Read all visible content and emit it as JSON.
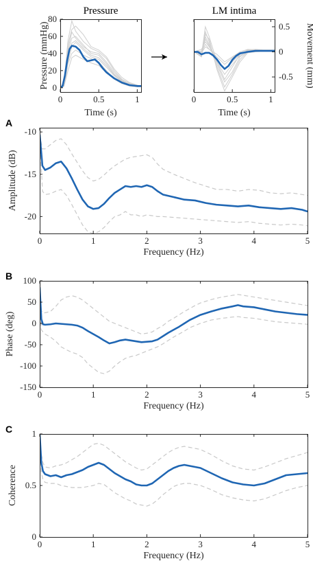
{
  "colors": {
    "mean": "#1f66b3",
    "band": "#c8c8c8",
    "trace": "#cfcfcf",
    "axis": "#262626"
  },
  "chart_data": [
    {
      "type": "line",
      "title": "Pressure",
      "xlabel": "Time (s)",
      "ylabel": "Pressure (mmHg)",
      "xlim": [
        0,
        1.05
      ],
      "ylim": [
        -5,
        80
      ],
      "xticks": [
        0,
        0.5,
        1
      ],
      "yticks": [
        0,
        20,
        40,
        60,
        80
      ],
      "xticklabels": [
        "0",
        "0.5",
        "1"
      ],
      "yticklabels": [
        "0",
        "20",
        "40",
        "60",
        "80"
      ],
      "mean": {
        "x": [
          0,
          0.03,
          0.06,
          0.09,
          0.12,
          0.15,
          0.2,
          0.25,
          0.3,
          0.35,
          0.4,
          0.45,
          0.5,
          0.55,
          0.6,
          0.7,
          0.8,
          0.9,
          1.0,
          1.05
        ],
        "y": [
          0,
          2,
          14,
          32,
          45,
          49,
          48,
          44,
          36,
          31,
          32,
          33,
          29,
          23,
          18,
          11,
          6,
          3,
          2,
          2
        ]
      },
      "traces": {
        "x": [
          0,
          0.05,
          0.1,
          0.15,
          0.2,
          0.3,
          0.4,
          0.5,
          0.6,
          0.7,
          0.8,
          0.9,
          1.0,
          1.05
        ],
        "y": [
          [
            0,
            6,
            50,
            68,
            72,
            62,
            48,
            44,
            36,
            22,
            12,
            6,
            3,
            2
          ],
          [
            0,
            3,
            42,
            58,
            60,
            50,
            40,
            38,
            28,
            16,
            8,
            4,
            2,
            2
          ],
          [
            0,
            4,
            30,
            48,
            53,
            44,
            36,
            33,
            24,
            14,
            7,
            3,
            2,
            2
          ],
          [
            0,
            2,
            28,
            40,
            44,
            38,
            34,
            30,
            20,
            10,
            5,
            2,
            1,
            1
          ],
          [
            0,
            5,
            45,
            65,
            58,
            48,
            42,
            40,
            30,
            18,
            9,
            4,
            2,
            2
          ],
          [
            0,
            2,
            20,
            35,
            38,
            33,
            29,
            26,
            18,
            10,
            5,
            2,
            1,
            1
          ],
          [
            0,
            7,
            55,
            78,
            66,
            54,
            46,
            42,
            34,
            20,
            10,
            5,
            3,
            2
          ],
          [
            0,
            3,
            35,
            52,
            55,
            46,
            38,
            35,
            26,
            15,
            8,
            4,
            2,
            2
          ]
        ]
      }
    },
    {
      "type": "line",
      "title": "LM intima",
      "xlabel": "Time (s)",
      "ylabel": "Movement (mm)",
      "xlim": [
        0,
        1.05
      ],
      "ylim": [
        -0.8,
        0.65
      ],
      "xticks": [
        0,
        0.5,
        1
      ],
      "yticks": [
        0.5,
        0,
        -0.5
      ],
      "xticklabels": [
        "0",
        "0.5",
        "1"
      ],
      "yticklabels": [
        "0.5",
        "0",
        "-0.5"
      ],
      "mean": {
        "x": [
          0,
          0.05,
          0.1,
          0.15,
          0.2,
          0.25,
          0.3,
          0.35,
          0.4,
          0.45,
          0.5,
          0.55,
          0.6,
          0.7,
          0.8,
          0.9,
          1.0,
          1.05
        ],
        "y": [
          0,
          0,
          -0.05,
          -0.02,
          -0.02,
          -0.07,
          -0.15,
          -0.26,
          -0.34,
          -0.28,
          -0.16,
          -0.08,
          -0.03,
          0,
          0.02,
          0.02,
          0.02,
          0.02
        ]
      },
      "traces": {
        "x": [
          0,
          0.1,
          0.15,
          0.2,
          0.3,
          0.4,
          0.5,
          0.6,
          0.7,
          0.8,
          0.9,
          1.0,
          1.05
        ],
        "y": [
          [
            0,
            -0.05,
            0.5,
            0.3,
            -0.2,
            -0.55,
            -0.3,
            -0.05,
            0.02,
            0.02,
            0.02,
            0.02,
            0.02
          ],
          [
            0,
            -0.1,
            0.3,
            0.15,
            -0.3,
            -0.7,
            -0.45,
            -0.15,
            0,
            0.02,
            0.02,
            0.02,
            0.02
          ],
          [
            0,
            0.05,
            0.2,
            0.1,
            -0.15,
            -0.35,
            -0.2,
            -0.05,
            0.03,
            0.03,
            0.03,
            0.03,
            0.03
          ],
          [
            0,
            -0.02,
            0.1,
            0.05,
            -0.1,
            -0.25,
            -0.12,
            0,
            0.05,
            0.04,
            0.03,
            0.03,
            0.03
          ],
          [
            0,
            -0.08,
            0.4,
            0.2,
            -0.25,
            -0.6,
            -0.4,
            -0.1,
            0,
            0.01,
            0.01,
            0.01,
            0.01
          ],
          [
            0,
            0,
            0.15,
            0.05,
            -0.05,
            -0.2,
            -0.1,
            0,
            0.04,
            0.05,
            0.04,
            0.04,
            0.04
          ],
          [
            0,
            -0.1,
            0.35,
            0.25,
            -0.35,
            -0.78,
            -0.5,
            -0.2,
            -0.02,
            0,
            0.01,
            0.01,
            0.01
          ],
          [
            0,
            0.02,
            0.25,
            0.12,
            -0.2,
            -0.45,
            -0.25,
            -0.08,
            0.02,
            0.03,
            0.03,
            0.03,
            0.03
          ]
        ]
      }
    },
    {
      "type": "line",
      "panel": "A",
      "xlabel": "Frequency (Hz)",
      "ylabel": "Amplitude (dB)",
      "xlim": [
        0,
        5
      ],
      "ylim": [
        -22,
        -9.5
      ],
      "xticks": [
        0,
        1,
        2,
        3,
        4,
        5
      ],
      "yticks": [
        -10,
        -15,
        -20
      ],
      "xticklabels": [
        "0",
        "1",
        "2",
        "3",
        "4",
        "5"
      ],
      "yticklabels": [
        "-10",
        "-15",
        "-20"
      ],
      "x": [
        0,
        0.05,
        0.1,
        0.2,
        0.3,
        0.4,
        0.5,
        0.6,
        0.7,
        0.8,
        0.9,
        1.0,
        1.1,
        1.2,
        1.3,
        1.4,
        1.5,
        1.6,
        1.7,
        1.8,
        1.9,
        2.0,
        2.1,
        2.2,
        2.3,
        2.5,
        2.7,
        2.9,
        3.1,
        3.3,
        3.5,
        3.7,
        3.9,
        4.1,
        4.3,
        4.5,
        4.7,
        4.9,
        5.0
      ],
      "mean": [
        -10.3,
        -14.0,
        -14.5,
        -14.2,
        -13.7,
        -13.5,
        -14.3,
        -15.5,
        -16.8,
        -18.0,
        -18.8,
        -19.1,
        -19.0,
        -18.5,
        -17.8,
        -17.2,
        -16.8,
        -16.4,
        -16.5,
        -16.4,
        -16.5,
        -16.3,
        -16.5,
        -17.0,
        -17.4,
        -17.7,
        -18.0,
        -18.1,
        -18.4,
        -18.6,
        -18.7,
        -18.8,
        -18.7,
        -18.9,
        -19.0,
        -19.1,
        -19.0,
        -19.2,
        -19.4
      ],
      "upper": [
        -10.3,
        -12.0,
        -12.0,
        -11.5,
        -11.0,
        -10.8,
        -11.5,
        -12.6,
        -13.6,
        -14.6,
        -15.4,
        -15.8,
        -15.6,
        -15.1,
        -14.5,
        -14.0,
        -13.6,
        -13.2,
        -13.0,
        -12.9,
        -12.8,
        -12.7,
        -13.0,
        -13.8,
        -14.4,
        -15.0,
        -15.5,
        -16.0,
        -16.4,
        -16.8,
        -16.8,
        -17.0,
        -16.8,
        -16.9,
        -17.2,
        -17.3,
        -17.2,
        -17.4,
        -17.5
      ],
      "lower": [
        -10.3,
        -17.0,
        -17.4,
        -17.3,
        -17.0,
        -16.8,
        -17.5,
        -18.6,
        -19.8,
        -21.0,
        -21.8,
        -22.0,
        -21.8,
        -21.3,
        -20.6,
        -20.0,
        -19.8,
        -19.4,
        -19.8,
        -19.8,
        -20.0,
        -19.8,
        -19.9,
        -20.0,
        -20.0,
        -20.1,
        -20.2,
        -20.3,
        -20.4,
        -20.5,
        -20.6,
        -20.7,
        -20.6,
        -20.8,
        -20.9,
        -21.0,
        -20.9,
        -21.0,
        -21.1
      ]
    },
    {
      "type": "line",
      "panel": "B",
      "xlabel": "Frequency (Hz)",
      "ylabel": "Phase (deg)",
      "xlim": [
        0,
        5
      ],
      "ylim": [
        -150,
        100
      ],
      "xticks": [
        0,
        1,
        2,
        3,
        4,
        5
      ],
      "yticks": [
        100,
        50,
        0,
        -50,
        -100,
        -150
      ],
      "xticklabels": [
        "0",
        "1",
        "2",
        "3",
        "4",
        "5"
      ],
      "yticklabels": [
        "100",
        "50",
        "0",
        "-50",
        "-100",
        "-150"
      ],
      "x": [
        0,
        0.03,
        0.06,
        0.1,
        0.2,
        0.3,
        0.4,
        0.5,
        0.6,
        0.7,
        0.8,
        0.9,
        1.0,
        1.1,
        1.2,
        1.3,
        1.4,
        1.5,
        1.6,
        1.7,
        1.8,
        1.9,
        2.0,
        2.1,
        2.2,
        2.3,
        2.4,
        2.5,
        2.6,
        2.7,
        2.8,
        2.9,
        3.0,
        3.2,
        3.4,
        3.6,
        3.7,
        3.8,
        4.0,
        4.2,
        4.4,
        4.6,
        4.8,
        5.0
      ],
      "mean": [
        85,
        10,
        -2,
        -3,
        -2,
        0,
        -1,
        -2,
        -3,
        -5,
        -10,
        -18,
        -25,
        -32,
        -40,
        -47,
        -44,
        -40,
        -38,
        -40,
        -42,
        -44,
        -43,
        -42,
        -38,
        -30,
        -22,
        -15,
        -8,
        0,
        8,
        14,
        20,
        28,
        35,
        40,
        43,
        40,
        38,
        33,
        28,
        25,
        22,
        20
      ],
      "upper": [
        85,
        30,
        25,
        25,
        28,
        40,
        55,
        62,
        65,
        62,
        55,
        45,
        35,
        25,
        15,
        5,
        0,
        -5,
        -10,
        -15,
        -20,
        -25,
        -23,
        -20,
        -12,
        -5,
        5,
        12,
        20,
        28,
        35,
        42,
        48,
        56,
        62,
        66,
        68,
        66,
        62,
        58,
        54,
        50,
        46,
        42
      ],
      "lower": [
        85,
        -15,
        -20,
        -25,
        -32,
        -42,
        -55,
        -62,
        -68,
        -72,
        -80,
        -95,
        -105,
        -115,
        -118,
        -112,
        -100,
        -90,
        -82,
        -78,
        -75,
        -70,
        -65,
        -60,
        -55,
        -48,
        -40,
        -32,
        -25,
        -18,
        -10,
        -5,
        0,
        8,
        12,
        15,
        16,
        14,
        12,
        8,
        4,
        2,
        0,
        -2
      ]
    },
    {
      "type": "line",
      "panel": "C",
      "xlabel": "Frequency (Hz)",
      "ylabel": "Coherence",
      "xlim": [
        0,
        5
      ],
      "ylim": [
        0,
        1
      ],
      "xticks": [
        0,
        1,
        2,
        3,
        4,
        5
      ],
      "yticks": [
        1,
        0.5,
        0
      ],
      "xticklabels": [
        "0",
        "1",
        "2",
        "3",
        "4",
        "5"
      ],
      "yticklabels": [
        "1",
        "0.5",
        "0"
      ],
      "x": [
        0,
        0.03,
        0.06,
        0.1,
        0.2,
        0.3,
        0.4,
        0.5,
        0.6,
        0.7,
        0.8,
        0.9,
        1.0,
        1.1,
        1.2,
        1.3,
        1.4,
        1.5,
        1.6,
        1.7,
        1.8,
        1.9,
        2.0,
        2.1,
        2.2,
        2.3,
        2.4,
        2.5,
        2.6,
        2.7,
        2.8,
        2.9,
        3.0,
        3.2,
        3.4,
        3.6,
        3.8,
        4.0,
        4.2,
        4.4,
        4.6,
        4.8,
        5.0
      ],
      "mean": [
        1.0,
        0.72,
        0.64,
        0.61,
        0.59,
        0.6,
        0.58,
        0.6,
        0.61,
        0.63,
        0.65,
        0.68,
        0.7,
        0.72,
        0.7,
        0.66,
        0.62,
        0.59,
        0.56,
        0.54,
        0.51,
        0.5,
        0.5,
        0.52,
        0.56,
        0.6,
        0.64,
        0.67,
        0.69,
        0.7,
        0.69,
        0.68,
        0.67,
        0.62,
        0.57,
        0.53,
        0.51,
        0.5,
        0.52,
        0.56,
        0.6,
        0.61,
        0.62
      ],
      "upper": [
        1.0,
        0.8,
        0.72,
        0.68,
        0.67,
        0.69,
        0.7,
        0.72,
        0.75,
        0.78,
        0.82,
        0.86,
        0.9,
        0.91,
        0.89,
        0.85,
        0.81,
        0.77,
        0.73,
        0.7,
        0.67,
        0.65,
        0.66,
        0.7,
        0.74,
        0.78,
        0.82,
        0.85,
        0.87,
        0.88,
        0.87,
        0.86,
        0.85,
        0.8,
        0.74,
        0.69,
        0.66,
        0.65,
        0.68,
        0.72,
        0.76,
        0.79,
        0.82
      ],
      "lower": [
        1.0,
        0.62,
        0.56,
        0.53,
        0.52,
        0.52,
        0.5,
        0.49,
        0.48,
        0.48,
        0.48,
        0.49,
        0.5,
        0.52,
        0.51,
        0.47,
        0.43,
        0.4,
        0.37,
        0.35,
        0.32,
        0.31,
        0.3,
        0.32,
        0.36,
        0.41,
        0.45,
        0.49,
        0.51,
        0.52,
        0.52,
        0.51,
        0.5,
        0.46,
        0.41,
        0.38,
        0.36,
        0.35,
        0.37,
        0.41,
        0.45,
        0.48,
        0.5
      ]
    }
  ]
}
